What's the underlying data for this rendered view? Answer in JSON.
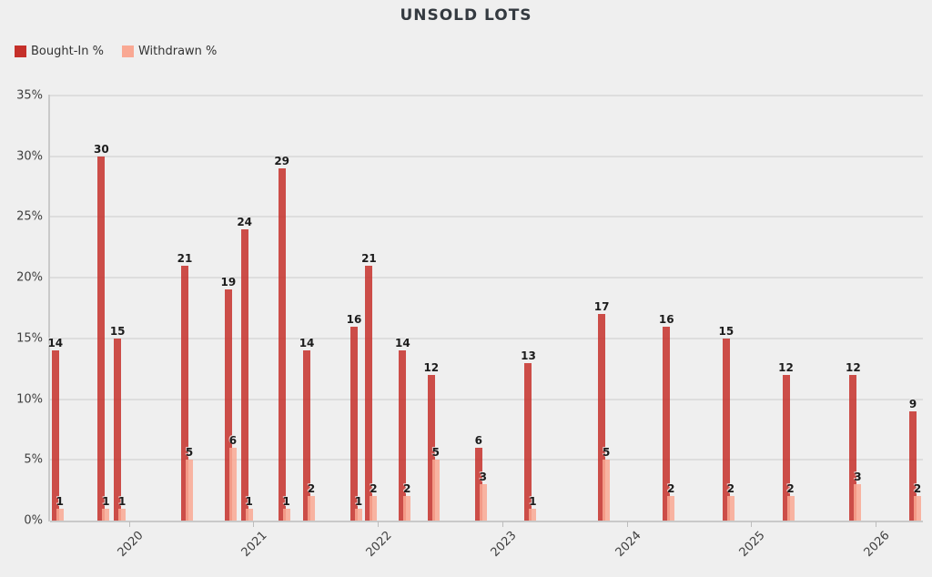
{
  "title": "UNSOLD LOTS",
  "legend": {
    "items": [
      {
        "label": "Bought-In %",
        "color": "#c5302a"
      },
      {
        "label": "Withdrawn %",
        "color": "#f9a893"
      }
    ]
  },
  "colors": {
    "background": "#efefef",
    "gridline": "#dddddd",
    "axis": "#c9c9c9",
    "bought_in": "#c5302a",
    "withdrawn": "#f9a893",
    "value_label": "#1c1c1c"
  },
  "chart_data": {
    "type": "bar",
    "title": "UNSOLD LOTS",
    "legend_position": "top-left",
    "grid": true,
    "y_axis": {
      "unit": "%",
      "min": 0,
      "max": 35,
      "tick_step": 5,
      "tick_labels": [
        "0%",
        "5%",
        "10%",
        "15%",
        "20%",
        "25%",
        "30%",
        "35%"
      ]
    },
    "x_axis": {
      "tick_labels": [
        "2020",
        "2021",
        "2022",
        "2023",
        "2024",
        "2025",
        "2026"
      ],
      "tick_years": [
        2020,
        2021,
        2022,
        2023,
        2024,
        2025,
        2026
      ],
      "label_rotation_deg": -45
    },
    "series": [
      {
        "name": "Bought-In %",
        "color": "#c5302a",
        "key": "bought_in"
      },
      {
        "name": "Withdrawn %",
        "color": "#f9a893",
        "key": "withdrawn"
      }
    ],
    "points": [
      {
        "x_year": 2019.41,
        "bought_in": 14,
        "withdrawn": 1
      },
      {
        "x_year": 2019.78,
        "bought_in": 30,
        "withdrawn": 1
      },
      {
        "x_year": 2019.91,
        "bought_in": 15,
        "withdrawn": 1
      },
      {
        "x_year": 2020.45,
        "bought_in": 21,
        "withdrawn": 5
      },
      {
        "x_year": 2020.8,
        "bought_in": 19,
        "withdrawn": 6
      },
      {
        "x_year": 2020.93,
        "bought_in": 24,
        "withdrawn": 1
      },
      {
        "x_year": 2021.23,
        "bought_in": 29,
        "withdrawn": 1
      },
      {
        "x_year": 2021.43,
        "bought_in": 14,
        "withdrawn": 2
      },
      {
        "x_year": 2021.81,
        "bought_in": 16,
        "withdrawn": 1
      },
      {
        "x_year": 2021.93,
        "bought_in": 21,
        "withdrawn": 2
      },
      {
        "x_year": 2022.2,
        "bought_in": 14,
        "withdrawn": 2
      },
      {
        "x_year": 2022.43,
        "bought_in": 12,
        "withdrawn": 5
      },
      {
        "x_year": 2022.81,
        "bought_in": 6,
        "withdrawn": 3
      },
      {
        "x_year": 2023.21,
        "bought_in": 13,
        "withdrawn": 1
      },
      {
        "x_year": 2023.8,
        "bought_in": 17,
        "withdrawn": 5
      },
      {
        "x_year": 2024.32,
        "bought_in": 16,
        "withdrawn": 2
      },
      {
        "x_year": 2024.8,
        "bought_in": 15,
        "withdrawn": 2
      },
      {
        "x_year": 2025.28,
        "bought_in": 12,
        "withdrawn": 2
      },
      {
        "x_year": 2025.82,
        "bought_in": 12,
        "withdrawn": 3
      },
      {
        "x_year": 2026.3,
        "bought_in": 9,
        "withdrawn": 2
      }
    ]
  }
}
